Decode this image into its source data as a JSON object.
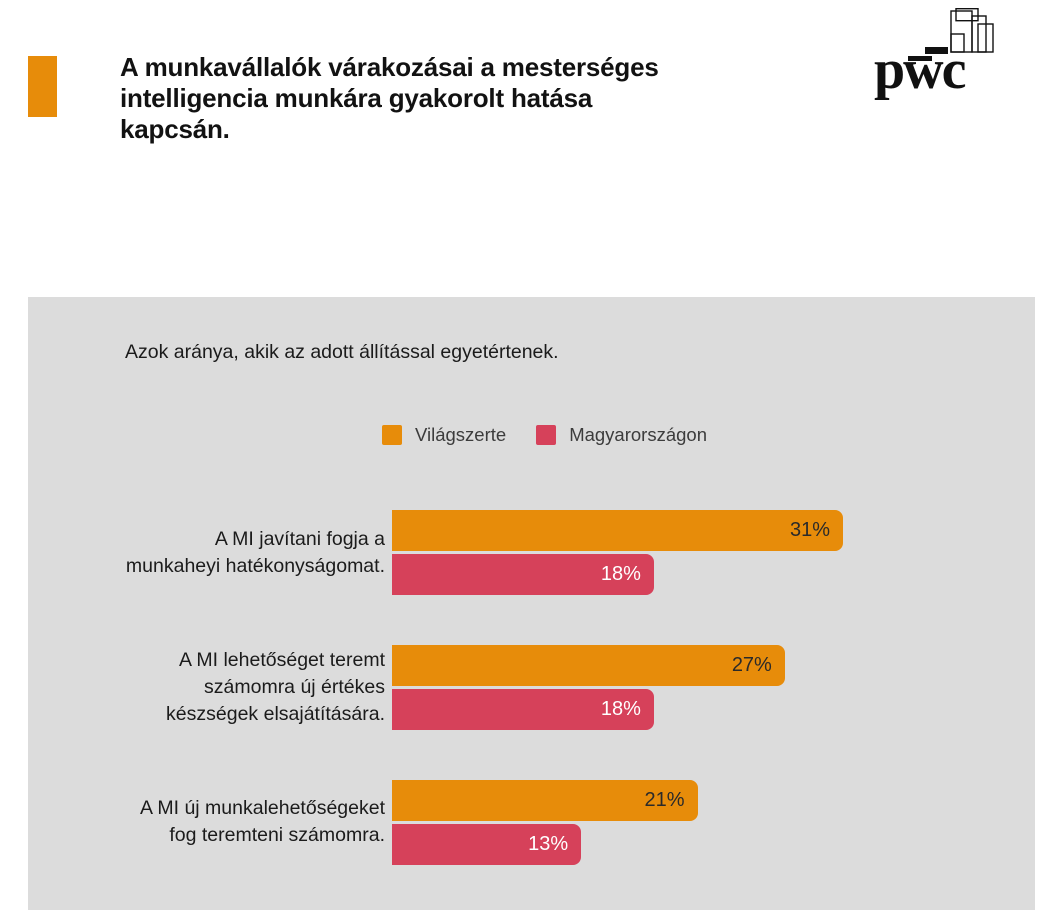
{
  "header": {
    "accent_color": "#E78C0A",
    "title": "A munkavállalók várakozásai a mesterséges\nintelligencia munkára gyakorolt hatása\nkapcsán."
  },
  "logo": {
    "wordmark": "pwc"
  },
  "chart_data": {
    "type": "bar",
    "orientation": "horizontal",
    "subtitle": "Azok aránya, akik az adott állítással egyetértenek.",
    "categories": [
      "A MI javítani fogja a\nmunkaheyi hatékonyságomat.",
      "A MI lehetőséget teremt\nszámomra új értékes\nkészségek elsajátítására.",
      "A MI új munkalehetőségeket\nfog teremteni számomra."
    ],
    "series": [
      {
        "name": "Világszerte",
        "color": "#E78C0A",
        "values": [
          31,
          27,
          21
        ]
      },
      {
        "name": "Magyarországon",
        "color": "#D6415A",
        "values": [
          18,
          18,
          13
        ]
      }
    ],
    "unit": "%",
    "value_labels": "inside-end",
    "axes_shown": false,
    "legend_position": "top-center",
    "panel_background": "#DCDCDC"
  }
}
